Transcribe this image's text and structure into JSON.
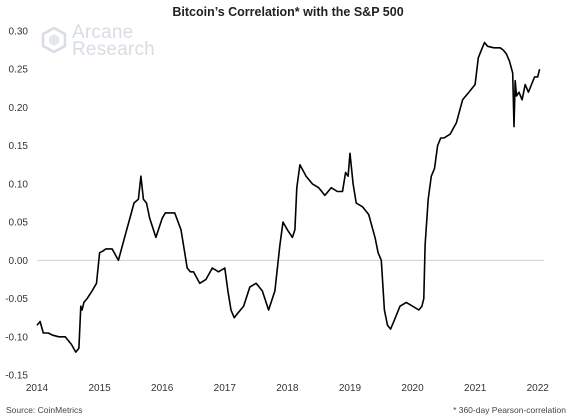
{
  "logo": {
    "line1": "Arcane",
    "line2": "Research"
  },
  "chart_data": {
    "type": "line",
    "title": "Bitcoin’s Correlation* with the S&P 500",
    "source": "Source: CoinMetrics",
    "footnote": "* 360-day Pearson-correlation",
    "xlim": [
      2014,
      2022.1
    ],
    "ylim": [
      -0.15,
      0.3
    ],
    "x_ticks": [
      2014,
      2015,
      2016,
      2017,
      2018,
      2019,
      2020,
      2021,
      2022
    ],
    "y_ticks": [
      -0.15,
      -0.1,
      -0.05,
      0.0,
      0.05,
      0.1,
      0.15,
      0.2,
      0.25,
      0.3
    ],
    "y_tick_labels": [
      "-0.15",
      "-0.10",
      "-0.05",
      "0.00",
      "0.05",
      "0.10",
      "0.15",
      "0.20",
      "0.25",
      "0.30"
    ],
    "line_color": "#000000",
    "zero_line_color": "#d0d0d0",
    "series": [
      {
        "x": [
          2014.0,
          2014.05,
          2014.1,
          2014.18,
          2014.25,
          2014.35,
          2014.45,
          2014.55,
          2014.62,
          2014.67,
          2014.7,
          2014.72,
          2014.75,
          2014.8,
          2014.88,
          2014.95,
          2015.0,
          2015.05,
          2015.1,
          2015.2,
          2015.3,
          2015.4,
          2015.5,
          2015.55,
          2015.62,
          2015.66,
          2015.7,
          2015.75,
          2015.8,
          2015.9,
          2016.0,
          2016.05,
          2016.1,
          2016.2,
          2016.3,
          2016.4,
          2016.45,
          2016.5,
          2016.6,
          2016.7,
          2016.8,
          2016.9,
          2017.0,
          2017.05,
          2017.1,
          2017.15,
          2017.2,
          2017.3,
          2017.4,
          2017.5,
          2017.6,
          2017.7,
          2017.8,
          2017.88,
          2017.93,
          2018.0,
          2018.08,
          2018.12,
          2018.15,
          2018.2,
          2018.3,
          2018.4,
          2018.5,
          2018.6,
          2018.7,
          2018.8,
          2018.88,
          2018.93,
          2018.97,
          2019.0,
          2019.05,
          2019.1,
          2019.2,
          2019.3,
          2019.4,
          2019.45,
          2019.5,
          2019.55,
          2019.6,
          2019.65,
          2019.7,
          2019.8,
          2019.9,
          2020.0,
          2020.1,
          2020.15,
          2020.18,
          2020.2,
          2020.25,
          2020.3,
          2020.35,
          2020.4,
          2020.45,
          2020.5,
          2020.6,
          2020.7,
          2020.8,
          2020.9,
          2021.0,
          2021.05,
          2021.1,
          2021.15,
          2021.2,
          2021.3,
          2021.4,
          2021.45,
          2021.5,
          2021.55,
          2021.6,
          2021.62,
          2021.64,
          2021.66,
          2021.7,
          2021.75,
          2021.8,
          2021.85,
          2021.9,
          2021.95,
          2022.0,
          2022.03
        ],
        "y": [
          -0.085,
          -0.08,
          -0.095,
          -0.095,
          -0.098,
          -0.1,
          -0.1,
          -0.11,
          -0.12,
          -0.115,
          -0.06,
          -0.065,
          -0.055,
          -0.05,
          -0.04,
          -0.03,
          0.01,
          0.012,
          0.015,
          0.015,
          0.0,
          0.03,
          0.06,
          0.075,
          0.08,
          0.11,
          0.08,
          0.075,
          0.055,
          0.03,
          0.055,
          0.062,
          0.062,
          0.062,
          0.04,
          -0.01,
          -0.015,
          -0.015,
          -0.03,
          -0.025,
          -0.01,
          -0.015,
          -0.01,
          -0.04,
          -0.065,
          -0.075,
          -0.07,
          -0.06,
          -0.035,
          -0.03,
          -0.04,
          -0.065,
          -0.04,
          0.02,
          0.05,
          0.04,
          0.03,
          0.04,
          0.095,
          0.125,
          0.11,
          0.1,
          0.095,
          0.085,
          0.095,
          0.09,
          0.09,
          0.115,
          0.11,
          0.14,
          0.1,
          0.075,
          0.07,
          0.06,
          0.03,
          0.01,
          0.0,
          -0.065,
          -0.085,
          -0.09,
          -0.08,
          -0.06,
          -0.055,
          -0.06,
          -0.065,
          -0.06,
          -0.05,
          0.02,
          0.08,
          0.11,
          0.12,
          0.15,
          0.16,
          0.16,
          0.165,
          0.18,
          0.21,
          0.22,
          0.23,
          0.265,
          0.275,
          0.285,
          0.28,
          0.278,
          0.278,
          0.275,
          0.27,
          0.26,
          0.245,
          0.175,
          0.235,
          0.215,
          0.22,
          0.21,
          0.23,
          0.22,
          0.23,
          0.24,
          0.24,
          0.25
        ]
      }
    ]
  }
}
